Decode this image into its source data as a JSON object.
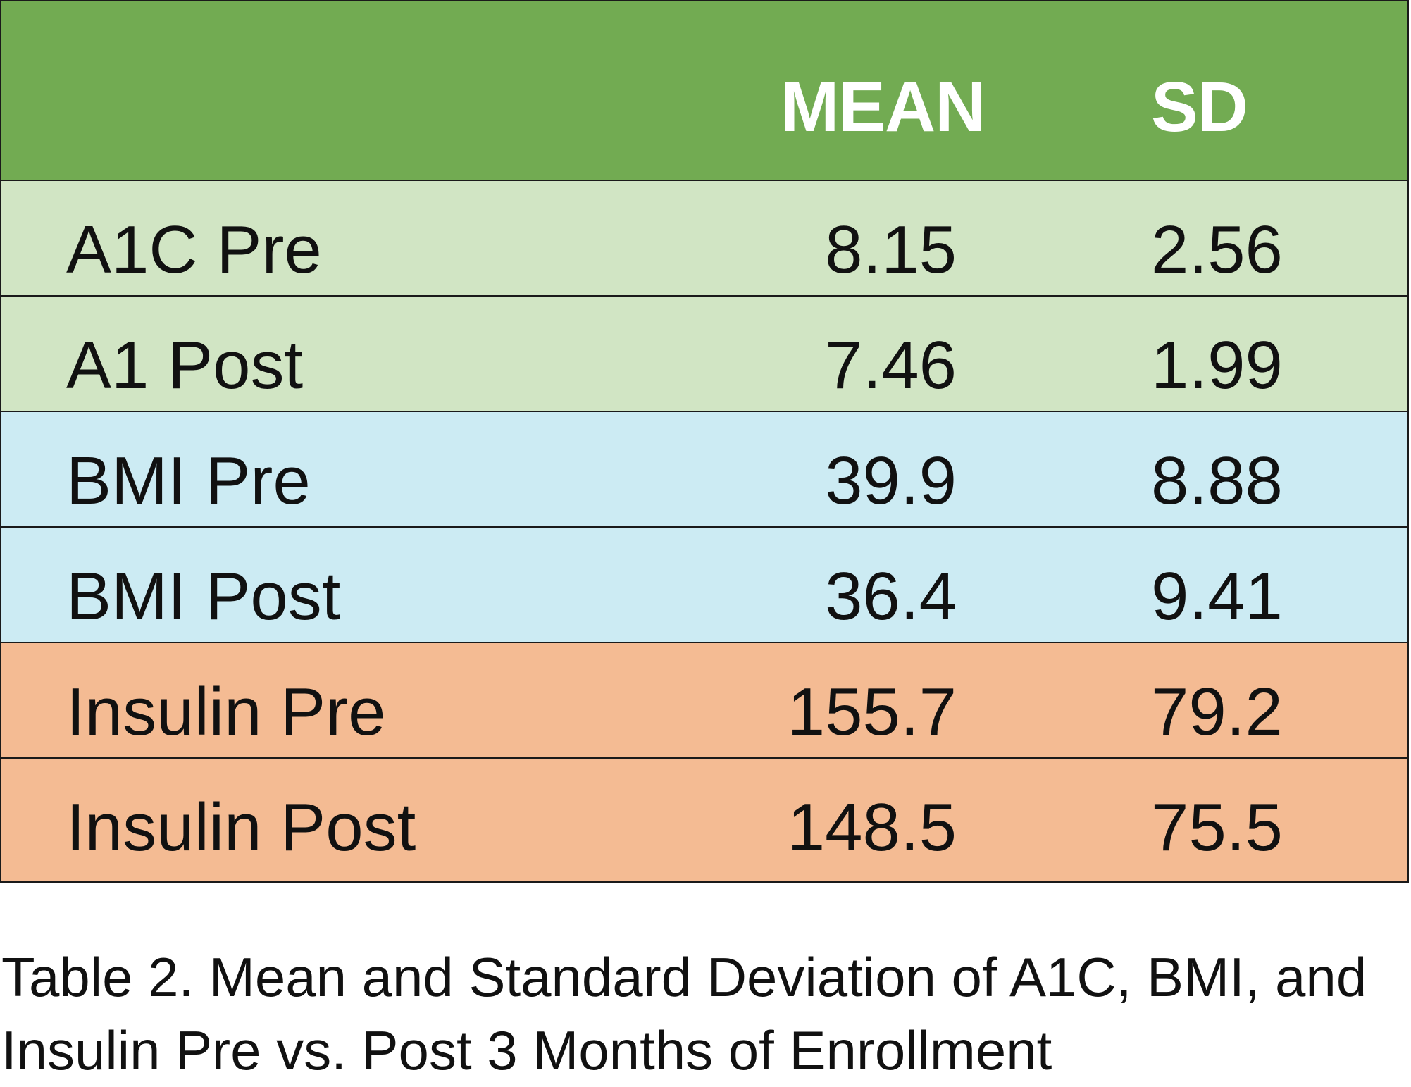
{
  "colors": {
    "header_bg": "#72AB52",
    "a1c_bg": "#D1E5C4",
    "bmi_bg": "#CCEBF3",
    "insulin_bg": "#F4BB93",
    "header_text": "#FFFFFF",
    "border": "#1A1A1A"
  },
  "table": {
    "columns": [
      "",
      "MEAN",
      "SD"
    ],
    "rows": [
      {
        "label": "A1C Pre",
        "mean": "8.15",
        "sd": "2.56",
        "group": "a1c"
      },
      {
        "label": "A1 Post",
        "mean": "7.46",
        "sd": "1.99",
        "group": "a1c"
      },
      {
        "label": "BMI Pre",
        "mean": "39.9",
        "sd": "8.88",
        "group": "bmi"
      },
      {
        "label": "BMI Post",
        "mean": "36.4",
        "sd": "9.41",
        "group": "bmi"
      },
      {
        "label": "Insulin Pre",
        "mean": "155.7",
        "sd": "79.2",
        "group": "insulin"
      },
      {
        "label": "Insulin Post",
        "mean": "148.5",
        "sd": "75.5",
        "group": "insulin"
      }
    ]
  },
  "caption": "Table 2. Mean and Standard Deviation of A1C, BMI, and Insulin Pre vs. Post 3 Months of Enrollment"
}
